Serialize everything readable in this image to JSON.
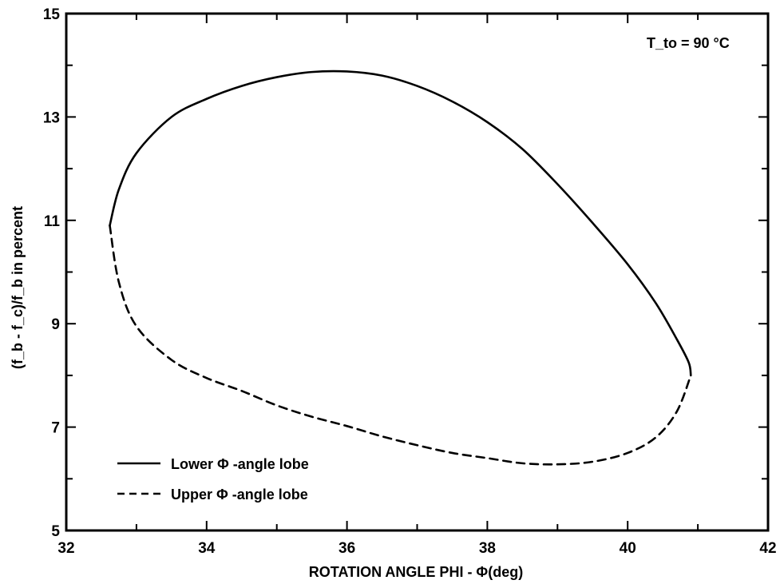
{
  "chart_data": {
    "type": "line",
    "title": "",
    "xlabel": "ROTATION ANGLE PHI  -  Φ(deg)",
    "ylabel": "(f_b - f_c)/f_b  in percent",
    "xlim": [
      32,
      42
    ],
    "ylim": [
      5,
      15
    ],
    "x_ticks": [
      "32",
      "34",
      "36",
      "38",
      "40",
      "42"
    ],
    "y_ticks": [
      "5",
      "7",
      "9",
      "11",
      "13",
      "15"
    ],
    "grid": false,
    "legend_position": "bottom-left",
    "annotation": "T_to = 90 °C",
    "series": [
      {
        "name": "Lower  Φ -angle lobe",
        "style": "solid",
        "x": [
          32.62,
          32.75,
          33.0,
          33.5,
          34.0,
          34.5,
          35.0,
          35.5,
          36.0,
          36.5,
          37.0,
          37.5,
          38.0,
          38.5,
          39.0,
          39.5,
          40.0,
          40.4,
          40.7,
          40.87,
          40.9
        ],
        "y": [
          10.9,
          11.6,
          12.3,
          13.0,
          13.35,
          13.6,
          13.77,
          13.87,
          13.88,
          13.8,
          13.6,
          13.3,
          12.9,
          12.38,
          11.7,
          10.95,
          10.15,
          9.4,
          8.7,
          8.25,
          8.0
        ]
      },
      {
        "name": "Upper  Φ -angle lobe",
        "style": "dashed",
        "x": [
          32.62,
          32.75,
          33.0,
          33.5,
          34.0,
          34.5,
          35.0,
          35.5,
          36.0,
          36.5,
          37.0,
          37.5,
          38.0,
          38.5,
          39.0,
          39.5,
          40.0,
          40.4,
          40.7,
          40.9
        ],
        "y": [
          10.9,
          9.8,
          8.95,
          8.3,
          7.95,
          7.7,
          7.42,
          7.2,
          7.02,
          6.82,
          6.65,
          6.5,
          6.4,
          6.3,
          6.28,
          6.33,
          6.5,
          6.8,
          7.3,
          8.0
        ]
      }
    ]
  }
}
